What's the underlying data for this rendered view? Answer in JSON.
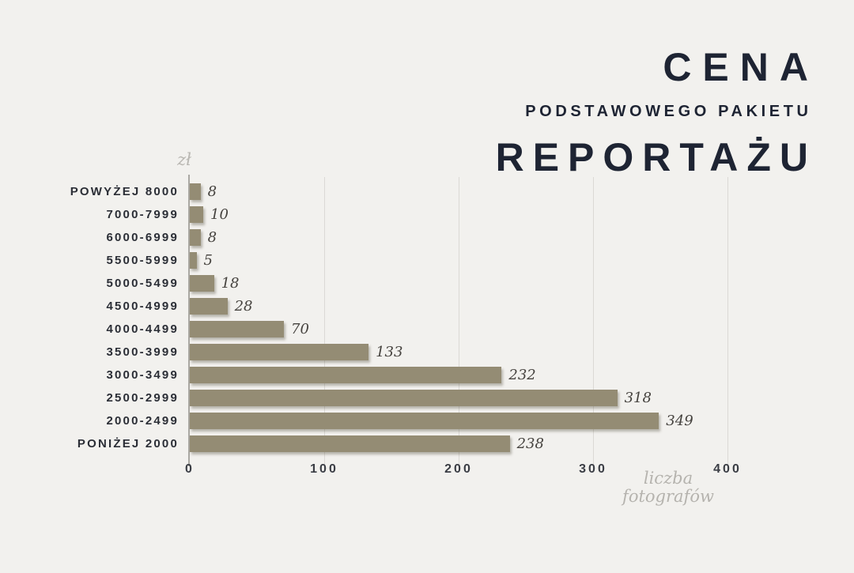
{
  "title": {
    "line1": "CENA",
    "line2": "PODSTAWOWEGO PAKIETU",
    "line3": "REPORTAŻU"
  },
  "axis_labels": {
    "y_unit": "zł",
    "x_unit_line1": "liczba",
    "x_unit_line2": "fotografów"
  },
  "colors": {
    "background": "#f2f1ee",
    "bar": "#948c74",
    "title": "#1e2433",
    "category_label": "#2b2e36",
    "value_label": "#45423e",
    "muted_serif": "#b5b3ae",
    "gridline": "#dbd9d5",
    "axis_line": "#aaa8a3"
  },
  "chart_data": {
    "type": "bar",
    "orientation": "horizontal",
    "title": "CENA PODSTAWOWEGO PAKIETU REPORTAŻU",
    "categories": [
      "POWYŻEJ 8000",
      "7000-7999",
      "6000-6999",
      "5500-5999",
      "5000-5499",
      "4500-4999",
      "4000-4499",
      "3500-3999",
      "3000-3499",
      "2500-2999",
      "2000-2499",
      "PONIŻEJ 2000"
    ],
    "values": [
      8,
      10,
      8,
      5,
      18,
      28,
      70,
      133,
      232,
      318,
      349,
      238
    ],
    "xlabel": "liczba fotografów",
    "ylabel": "zł",
    "xlim": [
      0,
      400
    ],
    "xticks": [
      0,
      100,
      200,
      300,
      400
    ],
    "grid": true,
    "legend": false,
    "data_labels": true
  }
}
